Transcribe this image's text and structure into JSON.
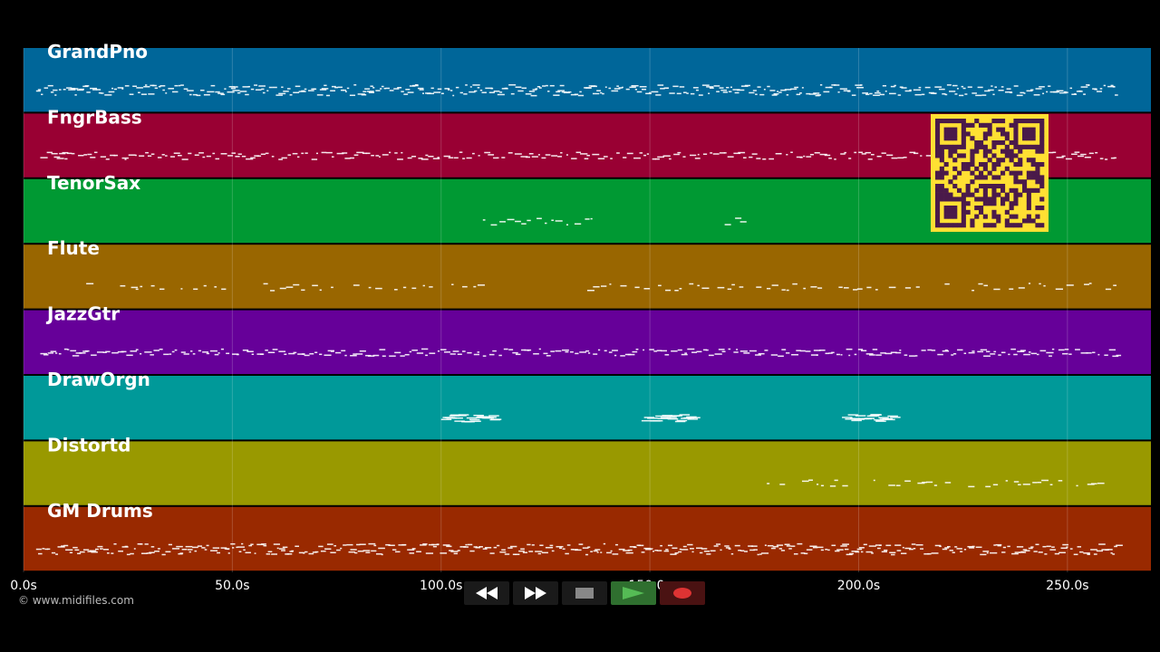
{
  "app": {
    "copyright": "© www.midifiles.com"
  },
  "timeline": {
    "max_seconds": 270,
    "ticks": [
      {
        "t": 0,
        "label": "0.0s"
      },
      {
        "t": 50,
        "label": "50.0s"
      },
      {
        "t": 100,
        "label": "100.0s"
      },
      {
        "t": 150,
        "label": "150.0s"
      },
      {
        "t": 200,
        "label": "200.0s"
      },
      {
        "t": 250,
        "label": "250.0s"
      }
    ]
  },
  "tracks": [
    {
      "name": "GrandPno",
      "color": "#006699",
      "notes": [
        [
          3,
          262
        ]
      ],
      "density": "dense"
    },
    {
      "name": "FngrBass",
      "color": "#990033",
      "notes": [
        [
          4,
          262
        ]
      ],
      "density": "medium"
    },
    {
      "name": "TenorSax",
      "color": "#009933",
      "notes": [
        [
          110,
          136
        ],
        [
          166,
          172
        ]
      ],
      "density": "sparse"
    },
    {
      "name": "Flute",
      "color": "#996600",
      "notes": [
        [
          15,
          110
        ],
        [
          135,
          262
        ]
      ],
      "density": "sparse"
    },
    {
      "name": "JazzGtr",
      "color": "#660099",
      "notes": [
        [
          4,
          262
        ]
      ],
      "density": "medium"
    },
    {
      "name": "DrawOrgn",
      "color": "#009999",
      "notes": [
        [
          100,
          112
        ],
        [
          148,
          160
        ],
        [
          196,
          208
        ]
      ],
      "density": "block"
    },
    {
      "name": "Distortd",
      "color": "#999900",
      "notes": [
        [
          178,
          258
        ]
      ],
      "density": "sparse"
    },
    {
      "name": "GM Drums",
      "color": "#992900",
      "notes": [
        [
          3,
          262
        ]
      ],
      "density": "dense"
    }
  ],
  "qr_code": {
    "label": "qr-code",
    "color": "#ffe033",
    "ink": "#4a1a4a"
  },
  "transport": {
    "rewind": "rewind-icon",
    "forward": "fast-forward-icon",
    "stop": "stop-icon",
    "play": "play-icon",
    "record": "record-icon",
    "colors": {
      "play": "#44aa44",
      "record": "#dd3333",
      "stop": "#888888"
    }
  }
}
